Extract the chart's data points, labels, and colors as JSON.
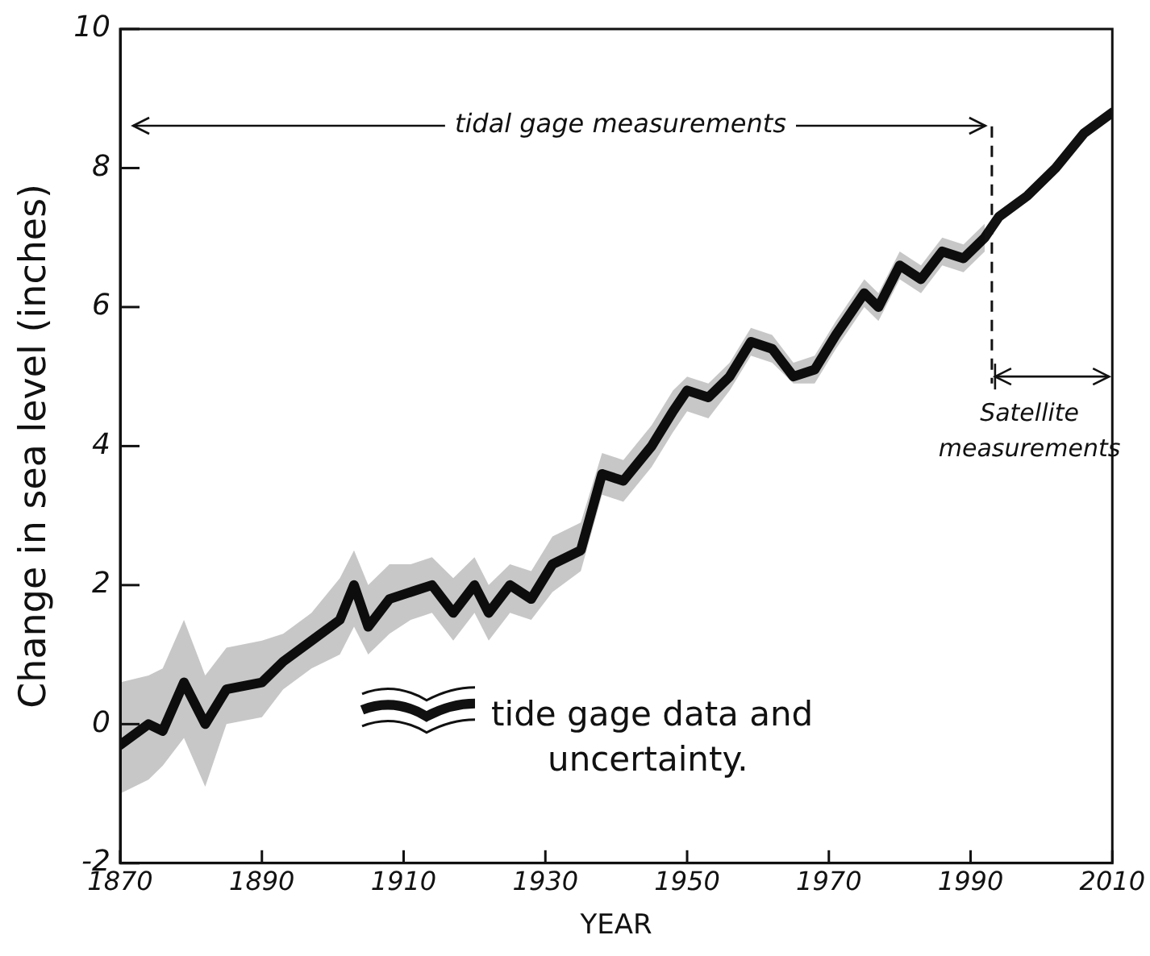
{
  "chart_data": {
    "type": "line",
    "xlabel": "YEAR",
    "ylabel": "Change in sea level (inches)",
    "x": [
      1870,
      1874,
      1876,
      1879,
      1882,
      1885,
      1890,
      1893,
      1897,
      1901,
      1903,
      1905,
      1908,
      1911,
      1914,
      1917,
      1920,
      1922,
      1925,
      1928,
      1931,
      1935,
      1938,
      1941,
      1945,
      1948,
      1950,
      1953,
      1956,
      1959,
      1962,
      1965,
      1968,
      1971,
      1975,
      1977,
      1980,
      1983,
      1986,
      1989,
      1992,
      1994,
      1998,
      2002,
      2006,
      2010
    ],
    "series": [
      {
        "name": "tide gage data and uncertainty.",
        "color": "#111111",
        "values": [
          -0.3,
          0.0,
          -0.1,
          0.6,
          0.0,
          0.5,
          0.6,
          0.9,
          1.2,
          1.5,
          2.0,
          1.4,
          1.8,
          1.9,
          2.0,
          1.6,
          2.0,
          1.6,
          2.0,
          1.8,
          2.3,
          2.5,
          3.6,
          3.5,
          4.0,
          4.5,
          4.8,
          4.7,
          5.0,
          5.5,
          5.4,
          5.0,
          5.1,
          5.6,
          6.2,
          6.0,
          6.6,
          6.4,
          6.8,
          6.7,
          7.0,
          7.3,
          7.6,
          8.0,
          8.5,
          8.8
        ],
        "lower": [
          -1.0,
          -0.8,
          -0.6,
          -0.2,
          -0.9,
          0.0,
          0.1,
          0.5,
          0.8,
          1.0,
          1.4,
          1.0,
          1.3,
          1.5,
          1.6,
          1.2,
          1.6,
          1.2,
          1.6,
          1.5,
          1.9,
          2.2,
          3.3,
          3.2,
          3.7,
          4.2,
          4.5,
          4.4,
          4.8,
          5.3,
          5.2,
          4.9,
          4.9,
          5.4,
          6.0,
          5.8,
          6.4,
          6.2,
          6.6,
          6.5,
          6.8,
          null,
          null,
          null,
          null,
          null
        ],
        "upper": [
          0.6,
          0.7,
          0.8,
          1.5,
          0.7,
          1.1,
          1.2,
          1.3,
          1.6,
          2.1,
          2.5,
          2.0,
          2.3,
          2.3,
          2.4,
          2.1,
          2.4,
          2.0,
          2.3,
          2.2,
          2.7,
          2.9,
          3.9,
          3.8,
          4.3,
          4.8,
          5.0,
          4.9,
          5.2,
          5.7,
          5.6,
          5.2,
          5.3,
          5.8,
          6.4,
          6.2,
          6.8,
          6.6,
          7.0,
          6.9,
          7.2,
          null,
          null,
          null,
          null,
          null
        ]
      }
    ],
    "xlim": [
      1870,
      2010
    ],
    "xticks": [
      1870,
      1890,
      1910,
      1930,
      1950,
      1970,
      1990,
      2010
    ],
    "ylim": [
      -2,
      10
    ],
    "yticks": [
      -2,
      0,
      2,
      4,
      6,
      8,
      10
    ],
    "grid": false,
    "legend": "bottom",
    "marker": "none",
    "line_style": "solid",
    "ref_lines": [
      {
        "axis": "x",
        "value": 1993,
        "line_style": "dashed"
      }
    ],
    "annotations": [
      "tidal gage measurements",
      "Satellite measurements"
    ]
  }
}
